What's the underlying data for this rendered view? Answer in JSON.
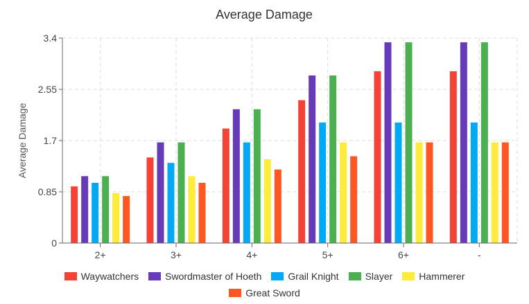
{
  "chart_data": {
    "type": "bar",
    "title": "Average Damage",
    "xlabel": "",
    "ylabel": "Average Damage",
    "ylim": [
      0,
      3.4
    ],
    "yticks": [
      "0",
      "0.85",
      "1.7",
      "2.55",
      "3.4"
    ],
    "categories": [
      "2+",
      "3+",
      "4+",
      "5+",
      "6+",
      "-"
    ],
    "grid": true,
    "legend_position": "bottom",
    "series": [
      {
        "name": "Waywatchers",
        "color": "#f44336",
        "values": [
          0.94,
          1.42,
          1.9,
          2.37,
          2.85,
          2.85
        ]
      },
      {
        "name": "Swordmaster of Hoeth",
        "color": "#673ab7",
        "values": [
          1.11,
          1.67,
          2.22,
          2.78,
          3.33,
          3.33
        ]
      },
      {
        "name": "Grail Knight",
        "color": "#03a9f4",
        "values": [
          1.0,
          1.33,
          1.67,
          2.0,
          2.0,
          2.0
        ]
      },
      {
        "name": "Slayer",
        "color": "#4caf50",
        "values": [
          1.11,
          1.67,
          2.22,
          2.78,
          3.33,
          3.33
        ]
      },
      {
        "name": "Hammerer",
        "color": "#ffeb3b",
        "values": [
          0.83,
          1.11,
          1.39,
          1.67,
          1.67,
          1.67
        ]
      },
      {
        "name": "Great Sword",
        "color": "#ff5722",
        "values": [
          0.78,
          1.0,
          1.22,
          1.44,
          1.67,
          1.67
        ]
      }
    ]
  }
}
